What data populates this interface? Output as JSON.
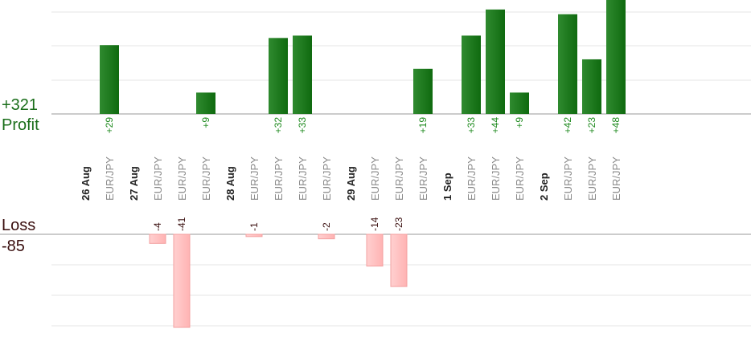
{
  "chart_data": {
    "type": "bar",
    "profit": {
      "label": "Profit",
      "total": "+321",
      "color": "#0f6a0f",
      "value_label_color": "#1e8a1e",
      "max": 48
    },
    "loss": {
      "label": "Loss",
      "total": "-85",
      "color": "#ffb3b3",
      "value_label_color": "#3a0f0f",
      "max": 41
    },
    "columns": [
      {
        "label": "26 Aug",
        "kind": "date"
      },
      {
        "label": "EUR/JPY",
        "kind": "pair",
        "profit": 29,
        "profit_label": "+29"
      },
      {
        "label": "27 Aug",
        "kind": "date"
      },
      {
        "label": "EUR/JPY",
        "kind": "pair",
        "loss": 4,
        "loss_label": "-4"
      },
      {
        "label": "EUR/JPY",
        "kind": "pair",
        "loss": 41,
        "loss_label": "-41"
      },
      {
        "label": "EUR/JPY",
        "kind": "pair",
        "profit": 9,
        "profit_label": "+9"
      },
      {
        "label": "28 Aug",
        "kind": "date"
      },
      {
        "label": "EUR/JPY",
        "kind": "pair",
        "loss": 1,
        "loss_label": "-1"
      },
      {
        "label": "EUR/JPY",
        "kind": "pair",
        "profit": 32,
        "profit_label": "+32"
      },
      {
        "label": "EUR/JPY",
        "kind": "pair",
        "profit": 33,
        "profit_label": "+33"
      },
      {
        "label": "EUR/JPY",
        "kind": "pair",
        "loss": 2,
        "loss_label": "-2"
      },
      {
        "label": "29 Aug",
        "kind": "date"
      },
      {
        "label": "EUR/JPY",
        "kind": "pair",
        "loss": 14,
        "loss_label": "-14"
      },
      {
        "label": "EUR/JPY",
        "kind": "pair",
        "loss": 23,
        "loss_label": "-23"
      },
      {
        "label": "EUR/JPY",
        "kind": "pair",
        "profit": 19,
        "profit_label": "+19"
      },
      {
        "label": "1 Sep",
        "kind": "date"
      },
      {
        "label": "EUR/JPY",
        "kind": "pair",
        "profit": 33,
        "profit_label": "+33"
      },
      {
        "label": "EUR/JPY",
        "kind": "pair",
        "profit": 44,
        "profit_label": "+44"
      },
      {
        "label": "EUR/JPY",
        "kind": "pair",
        "profit": 9,
        "profit_label": "+9"
      },
      {
        "label": "2 Sep",
        "kind": "date"
      },
      {
        "label": "EUR/JPY",
        "kind": "pair",
        "profit": 42,
        "profit_label": "+42"
      },
      {
        "label": "EUR/JPY",
        "kind": "pair",
        "profit": 23,
        "profit_label": "+23"
      },
      {
        "label": "EUR/JPY",
        "kind": "pair",
        "profit": 48,
        "profit_label": "+48"
      }
    ],
    "grid": true
  }
}
